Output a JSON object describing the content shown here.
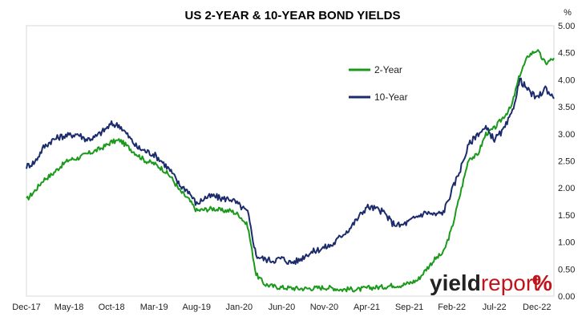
{
  "chart_data": {
    "type": "line",
    "title": "US 2-YEAR & 10-YEAR BOND YIELDS",
    "y_unit_label": "%",
    "ylim": [
      0,
      5
    ],
    "yticks": [
      "0.00",
      "0.50",
      "1.00",
      "1.50",
      "2.00",
      "2.50",
      "3.00",
      "3.50",
      "4.00",
      "4.50",
      "5.00"
    ],
    "xlim": [
      0,
      62
    ],
    "xticks": [
      {
        "label": "Dec-17",
        "x": 0
      },
      {
        "label": "May-18",
        "x": 5
      },
      {
        "label": "Oct-18",
        "x": 10
      },
      {
        "label": "Mar-19",
        "x": 15
      },
      {
        "label": "Aug-19",
        "x": 20
      },
      {
        "label": "Jan-20",
        "x": 25
      },
      {
        "label": "Jun-20",
        "x": 30
      },
      {
        "label": "Nov-20",
        "x": 35
      },
      {
        "label": "Apr-21",
        "x": 40
      },
      {
        "label": "Sep-21",
        "x": 45
      },
      {
        "label": "Feb-22",
        "x": 50
      },
      {
        "label": "Jul-22",
        "x": 55
      },
      {
        "label": "Dec-22",
        "x": 60
      }
    ],
    "grid": false,
    "legend_placement": "upper-right",
    "series": [
      {
        "name": "2-Year",
        "color": "#1a9a1a",
        "points": [
          [
            0,
            1.78
          ],
          [
            1,
            1.95
          ],
          [
            2,
            2.15
          ],
          [
            3,
            2.25
          ],
          [
            4,
            2.4
          ],
          [
            5,
            2.52
          ],
          [
            6,
            2.55
          ],
          [
            7,
            2.62
          ],
          [
            8,
            2.68
          ],
          [
            9,
            2.75
          ],
          [
            10,
            2.85
          ],
          [
            11,
            2.88
          ],
          [
            12,
            2.75
          ],
          [
            13,
            2.62
          ],
          [
            14,
            2.5
          ],
          [
            15,
            2.45
          ],
          [
            16,
            2.35
          ],
          [
            17,
            2.2
          ],
          [
            18,
            1.95
          ],
          [
            19,
            1.8
          ],
          [
            20,
            1.58
          ],
          [
            21,
            1.6
          ],
          [
            22,
            1.62
          ],
          [
            23,
            1.58
          ],
          [
            24,
            1.58
          ],
          [
            25,
            1.5
          ],
          [
            26,
            1.3
          ],
          [
            27,
            0.4
          ],
          [
            28,
            0.22
          ],
          [
            29,
            0.18
          ],
          [
            30,
            0.16
          ],
          [
            31,
            0.15
          ],
          [
            32,
            0.14
          ],
          [
            33,
            0.14
          ],
          [
            34,
            0.15
          ],
          [
            35,
            0.16
          ],
          [
            36,
            0.15
          ],
          [
            37,
            0.12
          ],
          [
            38,
            0.13
          ],
          [
            39,
            0.12
          ],
          [
            40,
            0.15
          ],
          [
            41,
            0.16
          ],
          [
            42,
            0.17
          ],
          [
            43,
            0.2
          ],
          [
            44,
            0.2
          ],
          [
            45,
            0.24
          ],
          [
            46,
            0.3
          ],
          [
            47,
            0.5
          ],
          [
            48,
            0.68
          ],
          [
            49,
            0.8
          ],
          [
            50,
            1.25
          ],
          [
            51,
            1.9
          ],
          [
            52,
            2.55
          ],
          [
            53,
            2.6
          ],
          [
            54,
            3.0
          ],
          [
            55,
            3.1
          ],
          [
            56,
            3.3
          ],
          [
            57,
            3.5
          ],
          [
            58,
            4.1
          ],
          [
            59,
            4.45
          ],
          [
            60,
            4.55
          ],
          [
            61,
            4.3
          ],
          [
            62,
            4.4
          ]
        ]
      },
      {
        "name": "10-Year",
        "color": "#1b2b6b",
        "points": [
          [
            0,
            2.4
          ],
          [
            1,
            2.48
          ],
          [
            2,
            2.75
          ],
          [
            3,
            2.88
          ],
          [
            4,
            2.95
          ],
          [
            5,
            2.97
          ],
          [
            6,
            3.0
          ],
          [
            7,
            2.9
          ],
          [
            8,
            2.93
          ],
          [
            9,
            3.05
          ],
          [
            10,
            3.18
          ],
          [
            11,
            3.15
          ],
          [
            12,
            2.95
          ],
          [
            13,
            2.75
          ],
          [
            14,
            2.68
          ],
          [
            15,
            2.62
          ],
          [
            16,
            2.48
          ],
          [
            17,
            2.3
          ],
          [
            18,
            2.05
          ],
          [
            19,
            1.95
          ],
          [
            20,
            1.7
          ],
          [
            21,
            1.82
          ],
          [
            22,
            1.85
          ],
          [
            23,
            1.8
          ],
          [
            24,
            1.8
          ],
          [
            25,
            1.68
          ],
          [
            26,
            1.55
          ],
          [
            27,
            0.75
          ],
          [
            28,
            0.68
          ],
          [
            29,
            0.66
          ],
          [
            30,
            0.7
          ],
          [
            31,
            0.62
          ],
          [
            32,
            0.66
          ],
          [
            33,
            0.78
          ],
          [
            34,
            0.84
          ],
          [
            35,
            0.9
          ],
          [
            36,
            0.95
          ],
          [
            37,
            1.12
          ],
          [
            38,
            1.25
          ],
          [
            39,
            1.45
          ],
          [
            40,
            1.65
          ],
          [
            41,
            1.62
          ],
          [
            42,
            1.55
          ],
          [
            43,
            1.35
          ],
          [
            44,
            1.3
          ],
          [
            45,
            1.38
          ],
          [
            46,
            1.48
          ],
          [
            47,
            1.55
          ],
          [
            48,
            1.5
          ],
          [
            49,
            1.55
          ],
          [
            50,
            1.95
          ],
          [
            51,
            2.35
          ],
          [
            52,
            2.8
          ],
          [
            53,
            3.0
          ],
          [
            54,
            3.1
          ],
          [
            55,
            2.9
          ],
          [
            56,
            3.05
          ],
          [
            57,
            3.35
          ],
          [
            58,
            4.0
          ],
          [
            59,
            3.8
          ],
          [
            60,
            3.65
          ],
          [
            61,
            3.85
          ],
          [
            62,
            3.65
          ]
        ]
      }
    ]
  },
  "logo": {
    "text_dark": "yield",
    "text_red": "report",
    "symbol": "%"
  }
}
